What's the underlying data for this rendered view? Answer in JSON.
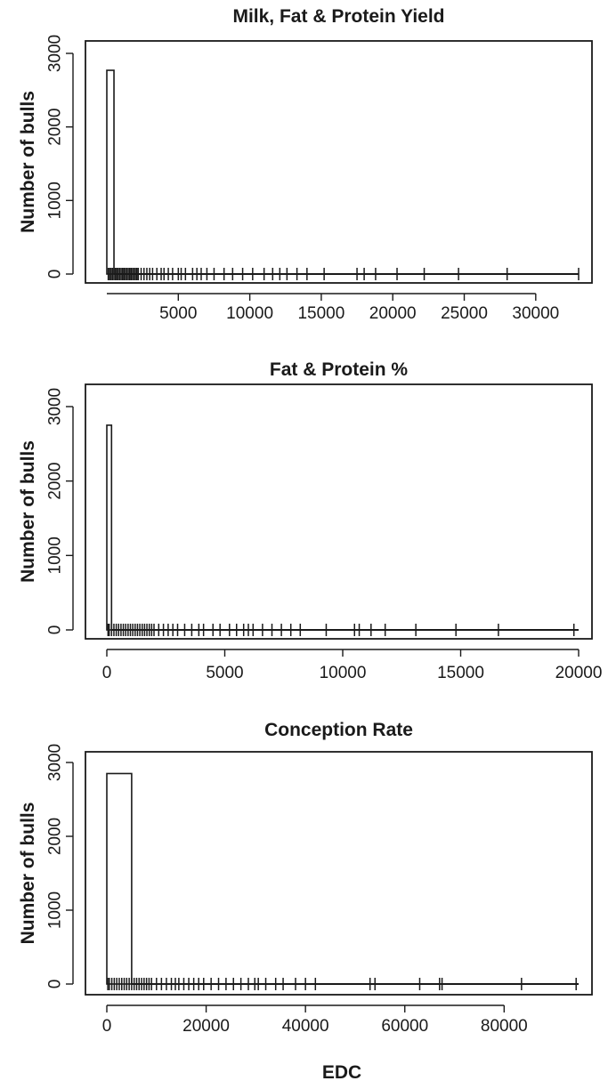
{
  "figure": {
    "xlabel": "EDC"
  },
  "chart_data": [
    {
      "type": "bar",
      "title": "Milk, Fat & Protein Yield",
      "ylabel": "Number of bulls",
      "xlim": [
        0,
        33000
      ],
      "ylim": [
        0,
        3000
      ],
      "xticks": [
        5000,
        10000,
        15000,
        20000,
        25000,
        30000
      ],
      "yticks": [
        0,
        1000,
        2000,
        3000
      ],
      "bins": [
        {
          "x0": 0,
          "x1": 500,
          "count": 2770
        },
        {
          "x0": 500,
          "x1": 33000,
          "count": 0
        }
      ],
      "rug": [
        100,
        200,
        300,
        400,
        500,
        600,
        700,
        800,
        900,
        1000,
        1100,
        1200,
        1300,
        1400,
        1500,
        1600,
        1700,
        1800,
        1900,
        2000,
        2100,
        2200,
        2400,
        2600,
        2800,
        3000,
        3200,
        3500,
        3800,
        4000,
        4300,
        4600,
        5000,
        5200,
        5500,
        6000,
        6300,
        6600,
        7000,
        7500,
        8200,
        8800,
        9500,
        10200,
        11000,
        11600,
        12100,
        12600,
        13300,
        14000,
        15200,
        17500,
        18000,
        18800,
        20300,
        22200,
        24600,
        28000,
        33000
      ]
    },
    {
      "type": "bar",
      "title": "Fat & Protein %",
      "ylabel": "Number of bulls",
      "xlim": [
        0,
        20000
      ],
      "ylim": [
        0,
        3000
      ],
      "xticks": [
        0,
        5000,
        10000,
        15000,
        20000
      ],
      "yticks": [
        0,
        1000,
        2000,
        3000
      ],
      "bins": [
        {
          "x0": 0,
          "x1": 200,
          "count": 2750
        },
        {
          "x0": 200,
          "x1": 20000,
          "count": 0
        }
      ],
      "rug": [
        50,
        100,
        200,
        300,
        400,
        500,
        600,
        700,
        800,
        900,
        1000,
        1100,
        1200,
        1300,
        1400,
        1500,
        1600,
        1700,
        1800,
        1900,
        2000,
        2200,
        2400,
        2600,
        2800,
        3000,
        3300,
        3600,
        3900,
        4100,
        4500,
        4800,
        5200,
        5500,
        5800,
        6000,
        6200,
        6600,
        7000,
        7400,
        7800,
        8200,
        9300,
        10500,
        10700,
        11200,
        11800,
        13100,
        14800,
        16600,
        19800
      ]
    },
    {
      "type": "bar",
      "title": "Conception Rate",
      "ylabel": "Number of bulls",
      "xlim": [
        0,
        95000
      ],
      "ylim": [
        0,
        3000
      ],
      "xticks": [
        0,
        20000,
        40000,
        60000,
        80000
      ],
      "yticks": [
        0,
        1000,
        2000,
        3000
      ],
      "bins": [
        {
          "x0": 0,
          "x1": 5000,
          "count": 2850
        },
        {
          "x0": 5000,
          "x1": 95000,
          "count": 0
        }
      ],
      "rug": [
        200,
        500,
        1000,
        1500,
        2000,
        2500,
        3000,
        3500,
        4000,
        4500,
        5000,
        5500,
        6000,
        6500,
        7000,
        7500,
        8000,
        8500,
        9000,
        10000,
        11000,
        12000,
        13000,
        13800,
        14500,
        15500,
        16500,
        17500,
        18500,
        19500,
        21000,
        22500,
        24000,
        25500,
        27000,
        28500,
        29800,
        30500,
        32000,
        34000,
        35500,
        38000,
        40000,
        42000,
        53000,
        54000,
        63000,
        67000,
        67500,
        83500,
        94500
      ]
    }
  ]
}
